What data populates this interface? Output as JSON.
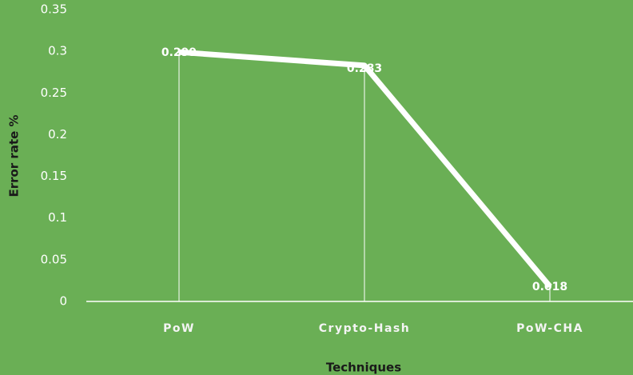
{
  "chart_data": {
    "type": "line",
    "x_label": "Techniques",
    "y_label": "Error rate  %",
    "categories": [
      "PoW",
      "Crypto-Hash",
      "PoW-CHA"
    ],
    "series": [
      {
        "name": "Error rate",
        "color": "#ffffff",
        "values": [
          0.299,
          0.283,
          0.018
        ]
      }
    ],
    "ylim": [
      0,
      0.35
    ],
    "yticks": [
      0,
      0.05,
      0.1,
      0.15,
      0.2,
      0.25,
      0.3,
      0.35
    ],
    "drop_lines": true
  }
}
